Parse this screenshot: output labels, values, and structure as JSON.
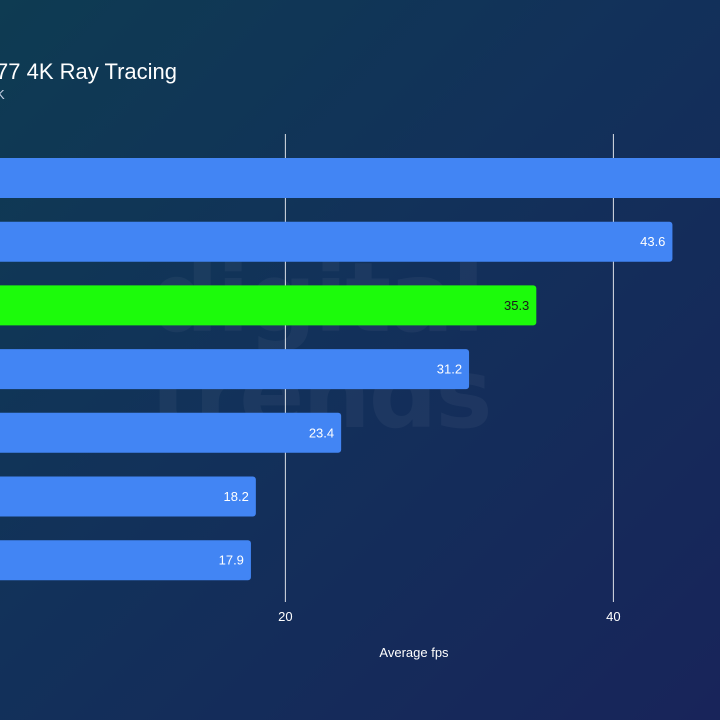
{
  "header": {
    "title": "77 4K Ray Tracing",
    "subtitle": "K"
  },
  "watermark": {
    "line1": "digital",
    "line2": "trends"
  },
  "colors": {
    "bar_default": "#4285f4",
    "bar_highlight": "#1cfb0b",
    "gridline": "#ffffff",
    "text": "#ffffff"
  },
  "chart_data": {
    "type": "bar",
    "orientation": "horizontal",
    "xlabel": "Average fps",
    "xlim": [
      2.6,
      46.5
    ],
    "xticks": [
      20,
      40
    ],
    "grid": true,
    "bars": [
      {
        "value": 48.5,
        "label": "",
        "highlight": false
      },
      {
        "value": 43.6,
        "label": "43.6",
        "highlight": false
      },
      {
        "value": 35.3,
        "label": "35.3",
        "highlight": true
      },
      {
        "value": 31.2,
        "label": "31.2",
        "highlight": false
      },
      {
        "value": 23.4,
        "label": "23.4",
        "highlight": false
      },
      {
        "value": 18.2,
        "label": "18.2",
        "highlight": false
      },
      {
        "value": 17.9,
        "label": "17.9",
        "highlight": false
      }
    ]
  }
}
